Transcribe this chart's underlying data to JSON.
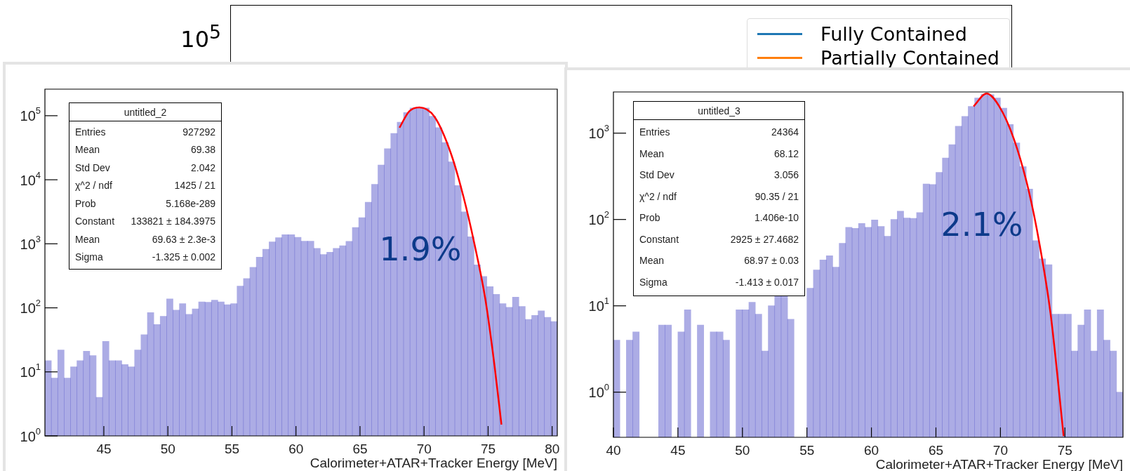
{
  "chart_data": [
    {
      "type": "other",
      "annotations": [
        "10$^{5}$"
      ],
      "legend": "top right",
      "series": [
        {
          "name": "Fully Contained",
          "color": "#1f77b4"
        },
        {
          "name": "Partially Contained",
          "color": "#ff7f0e"
        }
      ]
    },
    {
      "type": "histogram",
      "xlabel": "Calorimeter+ATAR+Tracker Energy [MeV]",
      "color": "#2f2fbf",
      "log": "y",
      "bins": [
        40.4,
        40.9,
        41.4,
        41.9,
        42.4,
        42.9,
        43.4,
        43.9,
        44.4,
        44.9,
        45.4,
        45.9,
        46.4,
        46.9,
        47.4,
        47.9,
        48.4,
        48.9,
        49.4,
        49.9,
        50.4,
        50.9,
        51.4,
        51.9,
        52.4,
        52.9,
        53.4,
        53.9,
        54.4,
        54.9,
        55.4,
        55.9,
        56.4,
        56.9,
        57.4,
        57.9,
        58.4,
        58.9,
        59.4,
        59.9,
        60.4,
        60.9,
        61.4,
        61.9,
        62.4,
        62.9,
        63.4,
        63.9,
        64.4,
        64.9,
        65.4,
        65.9,
        66.4,
        66.9,
        67.4,
        67.9,
        68.4,
        68.9,
        69.4,
        69.9,
        70.4,
        70.9,
        71.4,
        71.9,
        72.4,
        72.9,
        73.4,
        73.9,
        74.4,
        74.9,
        75.4,
        75.9,
        76.4,
        76.9,
        77.4,
        77.9,
        78.4,
        78.9,
        79.4,
        79.9,
        80.4
      ],
      "values": [
        15,
        8,
        22,
        8,
        12,
        15,
        21,
        18,
        4,
        30,
        15,
        15,
        13,
        12,
        22,
        38,
        84,
        55,
        74,
        138,
        92,
        116,
        79,
        96,
        124,
        122,
        132,
        124,
        112,
        116,
        218,
        287,
        430,
        617,
        820,
        1070,
        1250,
        1390,
        1390,
        1260,
        1100,
        1100,
        850,
        680,
        740,
        850,
        935,
        1090,
        1800,
        2560,
        4450,
        8500,
        17000,
        30500,
        53000,
        79000,
        112000,
        132000,
        135000,
        132000,
        98000,
        65000,
        38000,
        19000,
        8100,
        3160,
        1290,
        470,
        310,
        215,
        162,
        116,
        102,
        147,
        105,
        66,
        76,
        90,
        71,
        61
      ],
      "series": [
        {
          "type": "line",
          "color": "#ff0000",
          "x": [
            68.08,
            68.84,
            69.63,
            70.82,
            72.09,
            73.08,
            73.93,
            74.77,
            75.48,
            76.04
          ],
          "values": [
            65000,
            117000,
            135000,
            96000,
            26000,
            5400,
            1000,
            142,
            13.5,
            1.5
          ]
        }
      ],
      "xlim": [
        40.4,
        80.4
      ],
      "xticks": [
        45,
        50,
        55,
        60,
        65,
        70,
        75,
        80
      ],
      "ylim": [
        1,
        260000
      ],
      "yticks": [
        {
          "value": 1,
          "label": "10$^{0}$"
        },
        {
          "value": 10,
          "label": "10$^{1}$"
        },
        {
          "value": 100,
          "label": "10$^{2}$"
        },
        {
          "value": 1000,
          "label": "10$^{3}$"
        },
        {
          "value": 10000,
          "label": "10$^{4}$"
        },
        {
          "value": 100000,
          "label": "10$^{5}$"
        }
      ],
      "annotations": [
        "1.9%",
        "untitled_2",
        "Entries",
        "927292",
        "Mean",
        "69.38",
        "Std Dev",
        "2.042",
        "χ^2 / ndf",
        "1425 / 21",
        "Prob",
        "5.168e-289",
        "Constant",
        "133821 ± 184.3975",
        "Mean",
        "69.63 ± 2.3e-3",
        "Sigma",
        "-1.325 ± 0.002"
      ]
    },
    {
      "type": "histogram",
      "xlabel": "Calorimeter+ATAR+Tracker Energy [MeV]",
      "color": "#2f2fbf",
      "log": "y",
      "bins": [
        40,
        40.5,
        41,
        41.5,
        42,
        42.5,
        43,
        43.5,
        44,
        44.5,
        45,
        45.5,
        46,
        46.5,
        47,
        47.5,
        48,
        48.5,
        49,
        49.5,
        50,
        50.5,
        51,
        51.5,
        52,
        52.5,
        53,
        53.5,
        54,
        54.5,
        55,
        55.5,
        56,
        56.5,
        57,
        57.5,
        58,
        58.5,
        59,
        59.5,
        60,
        60.5,
        61,
        61.5,
        62,
        62.5,
        63,
        63.5,
        64,
        64.5,
        65,
        65.5,
        66,
        66.5,
        67,
        67.5,
        68,
        68.5,
        69,
        69.5,
        70,
        70.5,
        71,
        71.5,
        72,
        72.5,
        73,
        73.5,
        74,
        74.5,
        75,
        75.5,
        76,
        76.5,
        77,
        77.5,
        78,
        78.5,
        79,
        79.5
      ],
      "values": [
        4,
        null,
        4,
        5,
        null,
        null,
        null,
        6,
        6,
        null,
        5,
        9,
        null,
        6,
        null,
        5,
        5,
        4,
        null,
        9,
        9,
        11,
        8,
        3,
        10,
        13,
        13,
        7,
        null,
        null,
        16,
        26,
        34,
        38,
        28,
        53,
        81,
        79,
        90,
        81,
        99,
        83,
        64,
        100,
        125,
        104,
        103,
        120,
        258,
        254,
        352,
        515,
        735,
        1200,
        1560,
        2040,
        2550,
        2820,
        2790,
        2550,
        1950,
        1260,
        770,
        410,
        225,
        57,
        35,
        30,
        8,
        8,
        8,
        3,
        6,
        9,
        3,
        9,
        4,
        3,
        1
      ],
      "series": [
        {
          "type": "line",
          "color": "#ff0000",
          "x": [
            67.92,
            68.92,
            69.91,
            71.05,
            72.19,
            73.05,
            73.9,
            74.9
          ],
          "values": [
            2040,
            2880,
            2040,
            850,
            216,
            50,
            7.8,
            0.31
          ]
        }
      ],
      "xlim": [
        40,
        79.5
      ],
      "xticks": [
        40,
        45,
        50,
        55,
        60,
        65,
        70,
        75
      ],
      "ylim": [
        0.31,
        3000
      ],
      "yticks": [
        {
          "value": 1,
          "label": "10$^{0}$"
        },
        {
          "value": 10,
          "label": "10$^{1}$"
        },
        {
          "value": 100,
          "label": "10$^{2}$"
        },
        {
          "value": 1000,
          "label": "10$^{3}$"
        }
      ],
      "annotations": [
        "2.1%",
        "untitled_3",
        "Entries",
        "24364",
        "Mean",
        "68.12",
        "Std Dev",
        "3.056",
        "χ^2 / ndf",
        "90.35 / 21",
        "Prob",
        "1.406e-10",
        "Constant",
        "2925 ± 27.4682",
        "Mean",
        "68.97 ± 0.03",
        "Sigma",
        "-1.413 ± 0.017"
      ]
    }
  ]
}
